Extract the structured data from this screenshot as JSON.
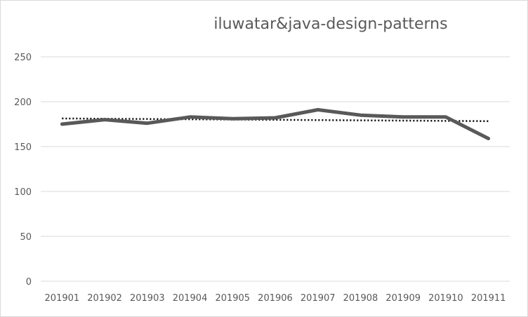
{
  "chart_data": {
    "type": "line",
    "title": "iluwatar&java-design-patterns",
    "xlabel": "",
    "ylabel": "",
    "categories": [
      "201901",
      "201902",
      "201903",
      "201904",
      "201905",
      "201906",
      "201907",
      "201908",
      "201909",
      "201910",
      "201911"
    ],
    "series": [
      {
        "values": [
          175,
          180,
          176,
          183,
          181,
          182,
          191,
          185,
          183,
          183,
          159
        ],
        "color": "#595959"
      }
    ],
    "trendline": {
      "type": "linear",
      "style": "dotted",
      "color": "#000000"
    },
    "ylim": [
      0,
      250
    ],
    "yticks": [
      "0",
      "50",
      "100",
      "150",
      "200",
      "250"
    ],
    "grid": true,
    "legend": "none"
  }
}
